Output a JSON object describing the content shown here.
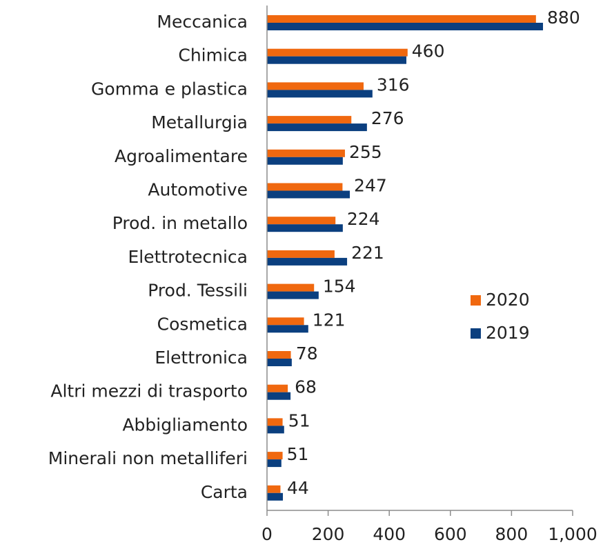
{
  "chart_data": {
    "type": "hbar",
    "categories": [
      "Meccanica",
      "Chimica",
      "Gomma e plastica",
      "Metallurgia",
      "Agroalimentare",
      "Automotive",
      "Prod. in metallo",
      "Elettrotecnica",
      "Prod. Tessili",
      "Cosmetica",
      "Elettronica",
      "Altri mezzi di trasporto",
      "Abbigliamento",
      "Minerali non metalliferi",
      "Carta"
    ],
    "series": [
      {
        "name": "2020",
        "color": "#f0680f",
        "values": [
          880,
          460,
          316,
          276,
          255,
          247,
          224,
          221,
          154,
          121,
          78,
          68,
          51,
          51,
          44
        ]
      },
      {
        "name": "2019",
        "color": "#0b3f7f",
        "values": [
          903,
          456,
          345,
          327,
          248,
          271,
          248,
          262,
          169,
          135,
          81,
          77,
          56,
          47,
          52
        ]
      }
    ],
    "xlim": [
      0,
      1000
    ],
    "xticks": [
      0,
      200,
      400,
      600,
      800,
      {
        "value": 1000,
        "label": "1,000"
      }
    ],
    "legend": "right"
  }
}
